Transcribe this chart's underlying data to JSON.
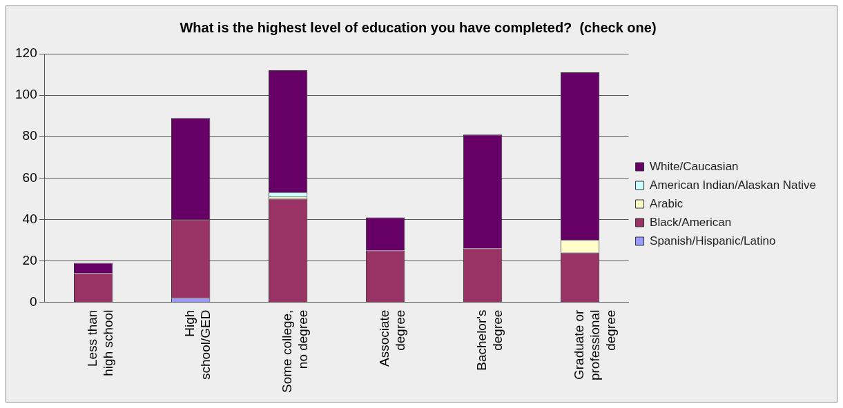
{
  "chart_data": {
    "type": "bar",
    "title": "What is the highest level of education you have completed?  (check one)",
    "categories": [
      "Less than high school",
      "High school/GED",
      "Some college, no degree",
      "Associate degree",
      "Bachelor's degree",
      "Graduate or professional degree"
    ],
    "stacked": true,
    "ylim": [
      0,
      120
    ],
    "yticks": [
      0,
      20,
      40,
      60,
      80,
      100,
      120
    ],
    "grid": "y",
    "legend": "right",
    "series": [
      {
        "name": "Spanish/Hispanic/Latino",
        "color": "#9999ff",
        "values": [
          0,
          2,
          0,
          0,
          0,
          null
        ]
      },
      {
        "name": "Black/American",
        "color": "#993366",
        "values": [
          14,
          38,
          50,
          25,
          26,
          24
        ]
      },
      {
        "name": "Arabic",
        "color": "#ffffcc",
        "values": [
          0,
          0,
          1,
          0,
          0,
          6
        ]
      },
      {
        "name": "American Indian/Alaskan Native",
        "color": "#ccffff",
        "values": [
          0,
          0,
          2,
          0,
          0,
          0
        ]
      },
      {
        "name": "White/Caucasian",
        "color": "#660066",
        "values": [
          5,
          49,
          59,
          16,
          55,
          81
        ]
      }
    ]
  }
}
